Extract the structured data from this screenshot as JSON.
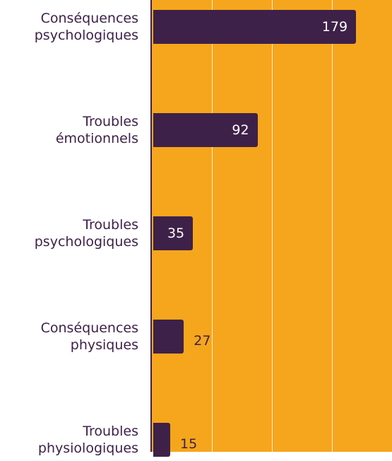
{
  "chart_data": {
    "type": "barh",
    "categories": [
      "Conséquences psychologiques",
      "Troubles émotionnels",
      "Troubles psychologiques",
      "Conséquences physiques",
      "Troubles physiologiques"
    ],
    "values": [
      179,
      92,
      35,
      27,
      15
    ],
    "color": "#3e2149",
    "background": "#f5a61c",
    "xlim": [
      0,
      212
    ],
    "xticks": [
      0,
      53,
      106,
      159,
      212
    ],
    "grid": true
  }
}
